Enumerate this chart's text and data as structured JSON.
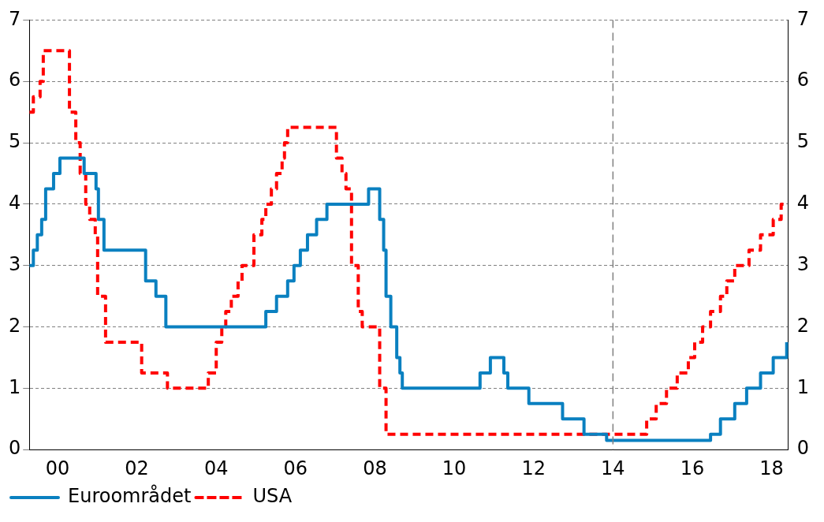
{
  "chart_data": {
    "type": "step",
    "xlim": [
      1999.29,
      2018.42
    ],
    "xticks": [
      {
        "value": 2000,
        "label": "00"
      },
      {
        "value": 2002,
        "label": "02"
      },
      {
        "value": 2004,
        "label": "04"
      },
      {
        "value": 2006,
        "label": "06"
      },
      {
        "value": 2008,
        "label": "08"
      },
      {
        "value": 2010,
        "label": "10"
      },
      {
        "value": 2012,
        "label": "12"
      },
      {
        "value": 2014,
        "label": "14"
      },
      {
        "value": 2016,
        "label": "16"
      },
      {
        "value": 2018,
        "label": "18"
      }
    ],
    "ylim": [
      0,
      7
    ],
    "yticks": [
      0,
      1,
      2,
      3,
      4,
      5,
      6,
      7
    ],
    "y2lim": [
      0,
      7
    ],
    "y2ticks": [
      0,
      1,
      2,
      3,
      4,
      5,
      6,
      7
    ],
    "grid": "y",
    "legend": "bottom left",
    "ref_lines": [
      {
        "axis": "x",
        "value": 2014,
        "color": "#808080",
        "line_style": "dashed"
      }
    ],
    "series": [
      {
        "name": "Euroområdet",
        "color": "#0a80c0",
        "line_style": "solid",
        "x": [
          1999.29,
          1999.39,
          1999.49,
          1999.6,
          1999.7,
          1999.9,
          2000.06,
          2000.67,
          2000.97,
          2001.03,
          2001.17,
          2002.22,
          2002.48,
          2002.73,
          2005.25,
          2005.52,
          2005.8,
          2005.96,
          2006.12,
          2006.3,
          2006.53,
          2006.79,
          2007.84,
          2008.12,
          2008.22,
          2008.28,
          2008.4,
          2008.55,
          2008.63,
          2008.69,
          2010.65,
          2010.91,
          2011.25,
          2011.35,
          2011.88,
          2012.73,
          2013.27,
          2013.84,
          2016.46,
          2016.71,
          2017.07,
          2017.37,
          2017.72,
          2018.04,
          2018.38
        ],
        "values": [
          3.0,
          3.25,
          3.5,
          3.75,
          4.25,
          4.5,
          4.75,
          4.5,
          4.25,
          3.75,
          3.25,
          2.75,
          2.5,
          2.0,
          2.25,
          2.5,
          2.75,
          3.0,
          3.25,
          3.5,
          3.75,
          4.0,
          4.25,
          3.75,
          3.25,
          2.5,
          2.0,
          1.5,
          1.25,
          1.0,
          1.25,
          1.5,
          1.25,
          1.0,
          0.75,
          0.5,
          0.25,
          0.15,
          0.25,
          0.5,
          0.75,
          1.0,
          1.25,
          1.5,
          1.75
        ]
      },
      {
        "name": "USA",
        "color": "#ff0000",
        "line_style": "dashed",
        "x": [
          1999.29,
          1999.39,
          1999.56,
          1999.64,
          2000.3,
          2000.46,
          2000.57,
          2000.71,
          2000.81,
          2000.95,
          2001.01,
          2001.21,
          2002.12,
          2002.77,
          2003.8,
          2004.0,
          2004.14,
          2004.24,
          2004.38,
          2004.55,
          2004.65,
          2004.95,
          2005.15,
          2005.25,
          2005.39,
          2005.52,
          2005.66,
          2005.72,
          2005.8,
          2007.03,
          2007.17,
          2007.27,
          2007.41,
          2007.58,
          2007.68,
          2008.12,
          2008.28,
          2014.85,
          2015.09,
          2015.35,
          2015.62,
          2015.9,
          2016.06,
          2016.26,
          2016.46,
          2016.71,
          2016.87,
          2017.07,
          2017.43,
          2017.72,
          2018.04,
          2018.24,
          2018.38
        ],
        "values": [
          5.5,
          5.75,
          6.0,
          6.5,
          5.5,
          5.0,
          4.5,
          4.0,
          3.75,
          3.5,
          2.5,
          1.75,
          1.25,
          1.0,
          1.25,
          1.75,
          2.0,
          2.25,
          2.5,
          2.75,
          3.0,
          3.5,
          3.75,
          4.0,
          4.25,
          4.5,
          4.75,
          5.0,
          5.25,
          4.75,
          4.5,
          4.25,
          3.0,
          2.25,
          2.0,
          1.0,
          0.25,
          0.5,
          0.75,
          1.0,
          1.25,
          1.5,
          1.75,
          2.0,
          2.25,
          2.5,
          2.75,
          3.0,
          3.25,
          3.5,
          3.75,
          4.0,
          4.0
        ]
      }
    ]
  }
}
